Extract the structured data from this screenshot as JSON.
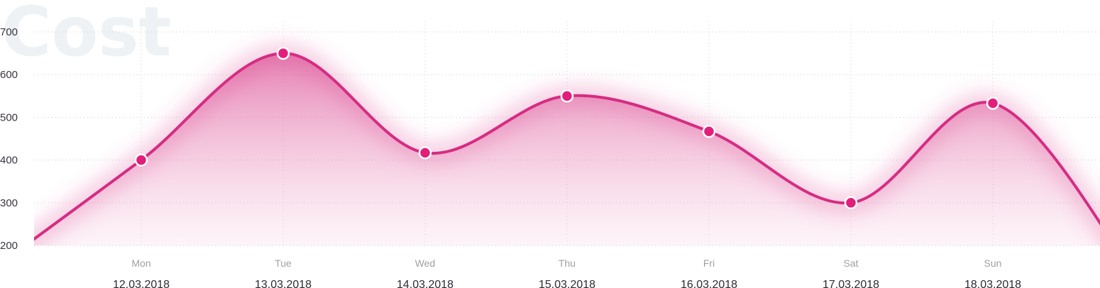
{
  "watermark": "Cost",
  "colors": {
    "line": "#d62c82",
    "point": "#e21e7a",
    "area": "#e0509a",
    "watermark": "#eef2f5"
  },
  "chart_data": {
    "type": "area",
    "title": "Cost",
    "categories": [
      "Mon",
      "Tue",
      "Wed",
      "Thu",
      "Fri",
      "Sat",
      "Sun"
    ],
    "dates": [
      "12.03.2018",
      "13.03.2018",
      "14.03.2018",
      "15.03.2018",
      "16.03.2018",
      "17.03.2018",
      "18.03.2018"
    ],
    "series": [
      {
        "values": [
          400,
          650,
          417,
          550,
          467,
          300,
          533
        ]
      }
    ],
    "yticks": [
      200,
      300,
      400,
      500,
      600,
      700
    ],
    "ylim": [
      200,
      700
    ],
    "grid": true,
    "smooth": true
  }
}
